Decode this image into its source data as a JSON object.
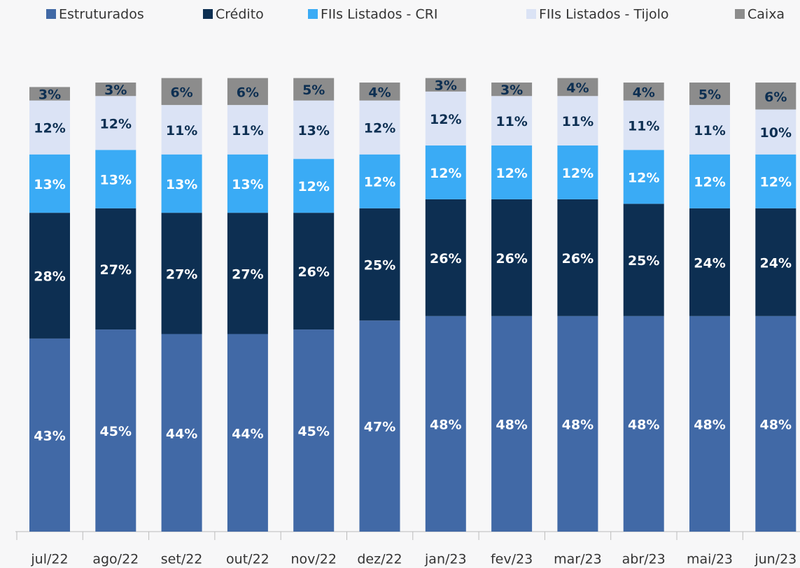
{
  "chart_data": {
    "type": "stacked_bar",
    "categories": [
      "jul/22",
      "ago/22",
      "set/22",
      "out/22",
      "nov/22",
      "dez/22",
      "jan/23",
      "fev/23",
      "mar/23",
      "abr/23",
      "mai/23",
      "jun/23"
    ],
    "series": [
      {
        "name": "Estruturados",
        "color": "#4169a6",
        "label_color": "#ffffff",
        "values": [
          43,
          45,
          44,
          44,
          45,
          47,
          48,
          48,
          48,
          48,
          48,
          48
        ],
        "value_labels": [
          "43%",
          "45%",
          "44%",
          "44%",
          "45%",
          "47%",
          "48%",
          "48%",
          "48%",
          "48%",
          "48%",
          "48%"
        ]
      },
      {
        "name": "Crédito",
        "color": "#0d2f52",
        "label_color": "#ffffff",
        "values": [
          28,
          27,
          27,
          27,
          26,
          25,
          26,
          26,
          26,
          25,
          24,
          24
        ],
        "value_labels": [
          "28%",
          "27%",
          "27%",
          "27%",
          "26%",
          "25%",
          "26%",
          "26%",
          "26%",
          "25%",
          "24%",
          "24%"
        ]
      },
      {
        "name": "FIIs Listados - CRI",
        "color": "#3aabf5",
        "label_color": "#ffffff",
        "values": [
          13,
          13,
          13,
          13,
          12,
          12,
          12,
          12,
          12,
          12,
          12,
          12
        ],
        "value_labels": [
          "13%",
          "13%",
          "13%",
          "13%",
          "12%",
          "12%",
          "12%",
          "12%",
          "12%",
          "12%",
          "12%",
          "12%"
        ]
      },
      {
        "name": "FIIs Listados - Tijolo",
        "color": "#dbe3f5",
        "label_color": "#0d2f52",
        "values": [
          12,
          12,
          11,
          11,
          13,
          12,
          12,
          11,
          11,
          11,
          11,
          10
        ],
        "value_labels": [
          "12%",
          "12%",
          "11%",
          "11%",
          "13%",
          "12%",
          "12%",
          "11%",
          "11%",
          "11%",
          "11%",
          "10%"
        ]
      },
      {
        "name": "Caixa",
        "color": "#8c8c8c",
        "label_color": "#0d2f52",
        "values": [
          3,
          3,
          6,
          6,
          5,
          4,
          3,
          3,
          4,
          4,
          5,
          6
        ],
        "value_labels": [
          "3%",
          "3%",
          "6%",
          "6%",
          "5%",
          "4%",
          "3%",
          "3%",
          "4%",
          "4%",
          "5%",
          "6%"
        ]
      }
    ]
  }
}
